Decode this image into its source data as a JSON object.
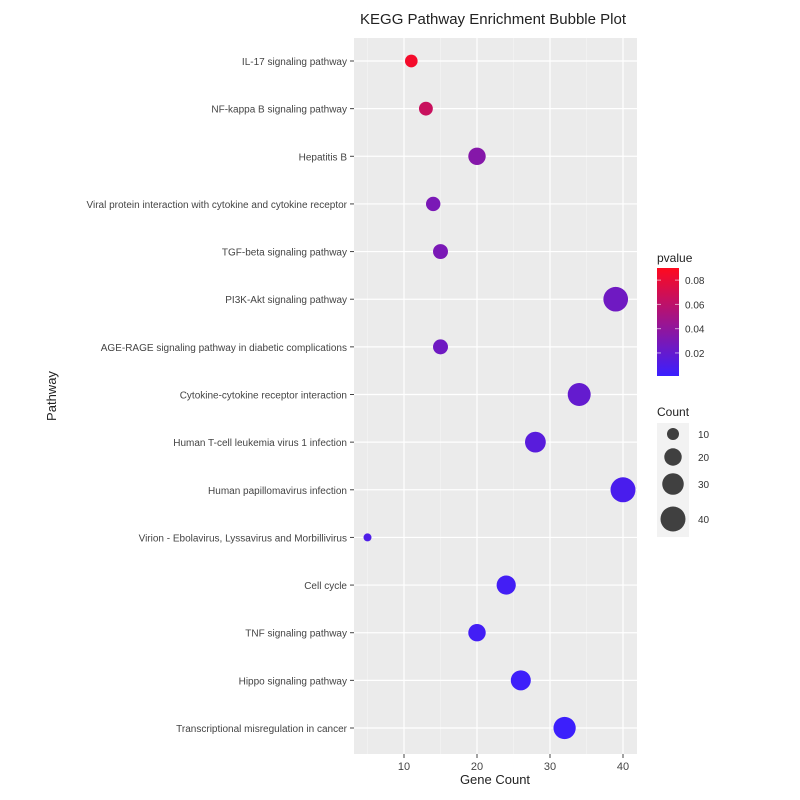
{
  "chart_data": {
    "type": "scatter",
    "title": "KEGG Pathway Enrichment Bubble Plot",
    "xlabel": "Gene Count",
    "ylabel": "Pathway",
    "xlim": [
      3.5,
      42
    ],
    "xticks": [
      10,
      20,
      30,
      40
    ],
    "grid": true,
    "legend_position": "right",
    "categories": [
      "IL-17 signaling pathway",
      "NF-kappa B signaling pathway",
      "Hepatitis B",
      "Viral protein interaction with cytokine and cytokine receptor",
      "TGF-beta signaling pathway",
      "PI3K-Akt signaling pathway",
      "AGE-RAGE signaling pathway in diabetic complications",
      "Cytokine-cytokine receptor interaction",
      "Human T-cell leukemia virus 1 infection",
      "Human papillomavirus infection",
      "Virion - Ebolavirus, Lyssavirus and Morbillivirus",
      "Cell cycle",
      "TNF signaling pathway",
      "Hippo signaling pathway",
      "Transcriptional misregulation in cancer"
    ],
    "counts": [
      11,
      13,
      20,
      14,
      15,
      39,
      15,
      34,
      28,
      40,
      5,
      24,
      20,
      26,
      32
    ],
    "pvalues": [
      0.085,
      0.065,
      0.035,
      0.03,
      0.03,
      0.025,
      0.025,
      0.02,
      0.015,
      0.008,
      0.01,
      0.005,
      0.005,
      0.003,
      0.002
    ],
    "color_legend": {
      "title": "pvalue",
      "ticks": [
        "0.08",
        "0.06",
        "0.04",
        "0.02"
      ],
      "range": [
        0.001,
        0.09
      ],
      "low_color": "#3a1fff",
      "high_color": "#ff0a1e"
    },
    "size_legend": {
      "title": "Count",
      "ticks": [
        "10",
        "20",
        "30",
        "40"
      ]
    }
  }
}
